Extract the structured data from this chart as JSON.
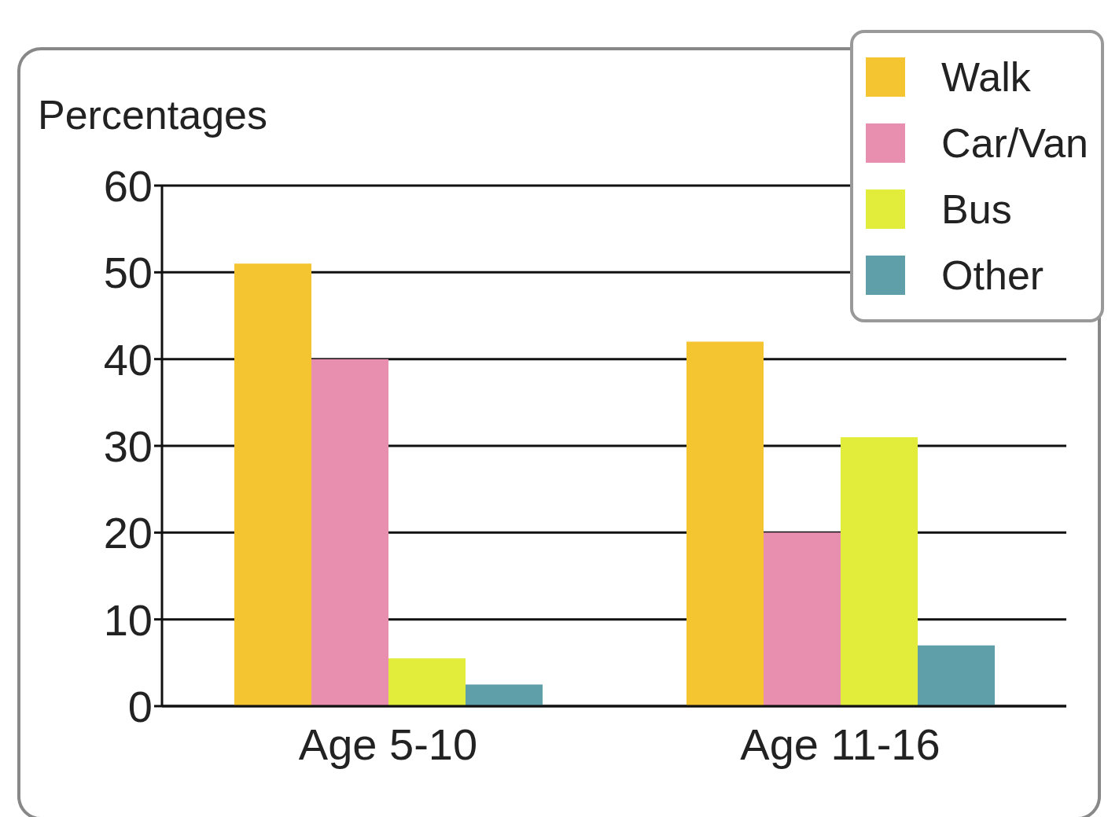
{
  "chart_data": {
    "type": "bar",
    "ylabel": "Percentages",
    "categories": [
      "Age 5-10",
      "Age 11-16"
    ],
    "series": [
      {
        "name": "Walk",
        "color": "#f5c431",
        "values": [
          51,
          42
        ]
      },
      {
        "name": "Car/Van",
        "color": "#e88fb0",
        "values": [
          40,
          20
        ]
      },
      {
        "name": "Bus",
        "color": "#e2ec3a",
        "values": [
          5.5,
          31
        ]
      },
      {
        "name": "Other",
        "color": "#5f9faa",
        "values": [
          2.5,
          7
        ]
      }
    ],
    "ylim": [
      0,
      60
    ],
    "yticks": [
      0,
      10,
      20,
      30,
      40,
      50,
      60
    ],
    "grid": "y",
    "legend": "top right"
  }
}
